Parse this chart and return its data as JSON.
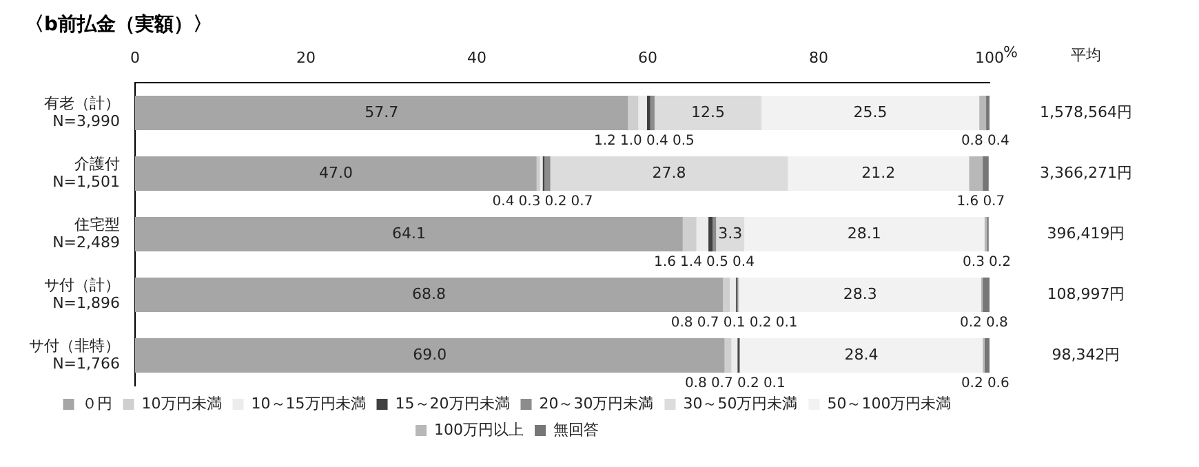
{
  "chart_data": {
    "type": "bar",
    "orientation": "horizontal",
    "stacked": true,
    "title": "〈b前払金（実額）〉",
    "xlabel": "%",
    "categories": [
      "有老（計）\nN=3,990",
      "介護付\nN=1,501",
      "住宅型\nN=2,489",
      "サ付（計）\nN=1,896",
      "サ付（非特）\nN=1,766"
    ],
    "series": [
      {
        "name": "０円",
        "color": "#a6a6a6",
        "values": [
          57.7,
          47.0,
          64.1,
          68.8,
          69.0
        ],
        "value_labels": [
          "57.7",
          "47.0",
          "64.1",
          "68.8",
          "69.0"
        ]
      },
      {
        "name": "10万円未満",
        "color": "#cfcfcf",
        "values": [
          1.2,
          0.4,
          1.6,
          0.8,
          0.8
        ],
        "value_labels": [
          "1.2",
          "0.4",
          "1.6",
          "0.8",
          "0.8"
        ]
      },
      {
        "name": "10～15万円未満",
        "color": "#ececec",
        "values": [
          1.0,
          0.3,
          1.4,
          0.7,
          0.7
        ],
        "value_labels": [
          "1.0",
          "0.3",
          "1.4",
          "0.7",
          "0.7"
        ]
      },
      {
        "name": "15～20万円未満",
        "color": "#404040",
        "values": [
          0.4,
          0.2,
          0.5,
          0.1,
          0.2
        ],
        "value_labels": [
          "0.4",
          "0.2",
          "0.5",
          "0.1",
          "0.2"
        ]
      },
      {
        "name": "20～30万円未満",
        "color": "#8c8c8c",
        "values": [
          0.5,
          0.7,
          0.4,
          0.2,
          0.1
        ],
        "value_labels": [
          "0.5",
          "0.7",
          "0.4",
          "0.2",
          "0.1"
        ]
      },
      {
        "name": "30～50万円未満",
        "color": "#dcdcdc",
        "values": [
          12.5,
          27.8,
          3.3,
          0.1,
          null
        ],
        "value_labels": [
          "12.5",
          "27.8",
          "3.3",
          "0.1",
          null
        ]
      },
      {
        "name": "50～100万円未満",
        "color": "#f2f2f2",
        "values": [
          25.5,
          21.2,
          28.1,
          28.3,
          28.4
        ],
        "value_labels": [
          "25.5",
          "21.2",
          "28.1",
          "28.3",
          "28.4"
        ]
      },
      {
        "name": "100万円以上",
        "color": "#b8b8b8",
        "values": [
          0.8,
          1.6,
          0.3,
          0.2,
          0.2
        ],
        "value_labels": [
          "0.8",
          "1.6",
          "0.3",
          "0.2",
          "0.2"
        ]
      },
      {
        "name": "無回答",
        "color": "#767676",
        "values": [
          0.4,
          0.7,
          0.2,
          0.8,
          0.6
        ],
        "value_labels": [
          "0.4",
          "0.7",
          "0.2",
          "0.8",
          "0.6"
        ]
      }
    ],
    "xlim": [
      0,
      100
    ],
    "xticks": [
      0,
      20,
      40,
      60,
      80,
      100
    ],
    "grid": false,
    "legend": "bottom",
    "annotations": [
      "平均",
      "1,578,564円",
      "3,366,271円",
      "396,419円",
      "108,997円",
      "98,342円"
    ]
  }
}
